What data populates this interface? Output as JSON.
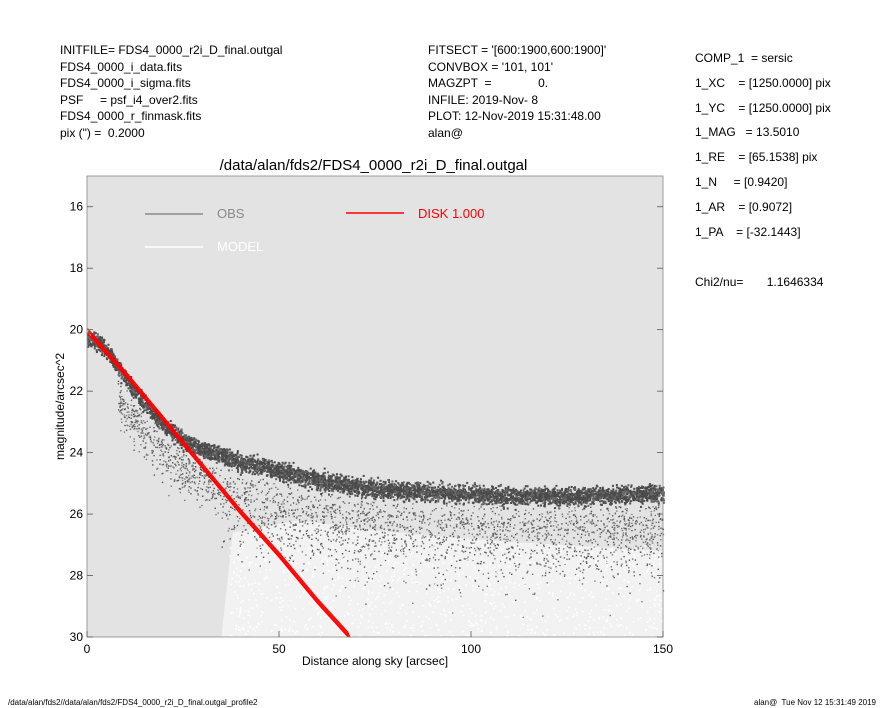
{
  "header_left": [
    "INITFILE= FDS4_0000_r2i_D_final.outgal",
    "FDS4_0000_i_data.fits",
    "FDS4_0000_i_sigma.fits",
    "PSF     = psf_i4_over2.fits",
    "FDS4_0000_r_finmask.fits",
    "pix (\") =  0.2000"
  ],
  "header_mid": [
    "FITSECT = '[600:1900,600:1900]'",
    "CONVBOX = '101, 101'",
    "MAGZPT  =              0.",
    "INFILE: 2019-Nov- 8",
    "PLOT: 12-Nov-2019 15:31:48.00",
    "alan@"
  ],
  "params": [
    "COMP_1  = sersic",
    "1_XC    = [1250.0000] pix",
    "1_YC    = [1250.0000] pix",
    "1_MAG   = 13.5010",
    "1_RE    = [65.1538] pix",
    "1_N     = [0.9420]",
    "1_AR    = [0.9072]",
    "1_PA    = [-32.1443]"
  ],
  "chi2": "Chi2/nu=       1.1646334",
  "footer_left": "/data/alan/fds2//data/alan/fds2/FDS4_0000_r2i_D_final.outgal_profile2",
  "footer_right": "alan@  Tue Nov 12 15:31:49 2019",
  "colors": {
    "plot_bg": "#e3e3e3",
    "obs": "#8a8a8a",
    "obs_dark": "#4a4a4a",
    "model": "#ffffff",
    "disk": "#ff0000"
  },
  "chart_data": {
    "type": "scatter",
    "title": "/data/alan/fds2/FDS4_0000_r2i_D_final.outgal",
    "xlabel": "Distance along sky [arcsec]",
    "ylabel": "magnitude/arcsec^2",
    "xlim": [
      0,
      150
    ],
    "ylim": [
      30,
      15
    ],
    "y_inverted": true,
    "grid": false,
    "legend_placement": "top-left",
    "xticks": [
      0,
      50,
      100,
      150
    ],
    "yticks": [
      16,
      18,
      20,
      22,
      24,
      26,
      28,
      30
    ],
    "legend": [
      {
        "label": "OBS",
        "color": "#8a8a8a"
      },
      {
        "label": "MODEL",
        "color": "#ffffff"
      },
      {
        "label": "DISK  1.000",
        "color": "#ff0000"
      }
    ],
    "series": [
      {
        "name": "OBS",
        "description_points": [
          [
            0,
            20.3
          ],
          [
            3,
            20.4
          ],
          [
            6,
            20.8
          ],
          [
            10,
            21.6
          ],
          [
            15,
            22.4
          ],
          [
            20,
            23.1
          ],
          [
            25,
            23.6
          ],
          [
            30,
            23.9
          ],
          [
            35,
            24.1
          ],
          [
            40,
            24.3
          ],
          [
            45,
            24.4
          ],
          [
            50,
            24.6
          ],
          [
            60,
            24.9
          ],
          [
            70,
            25.1
          ],
          [
            80,
            25.2
          ],
          [
            90,
            25.3
          ],
          [
            100,
            25.35
          ],
          [
            110,
            25.4
          ],
          [
            120,
            25.4
          ],
          [
            130,
            25.4
          ],
          [
            140,
            25.35
          ],
          [
            150,
            25.3
          ]
        ]
      },
      {
        "name": "MODEL",
        "description_points": [
          [
            0,
            20.2
          ],
          [
            20,
            23.0
          ],
          [
            40,
            26.0
          ],
          [
            60,
            29.0
          ],
          [
            67,
            30.0
          ]
        ]
      },
      {
        "name": "DISK  1.000",
        "description_points": [
          [
            0,
            20.1
          ],
          [
            10,
            21.5
          ],
          [
            20,
            23.0
          ],
          [
            30,
            24.5
          ],
          [
            40,
            26.0
          ],
          [
            50,
            27.4
          ],
          [
            60,
            28.9
          ],
          [
            68,
            30.0
          ]
        ]
      }
    ]
  }
}
